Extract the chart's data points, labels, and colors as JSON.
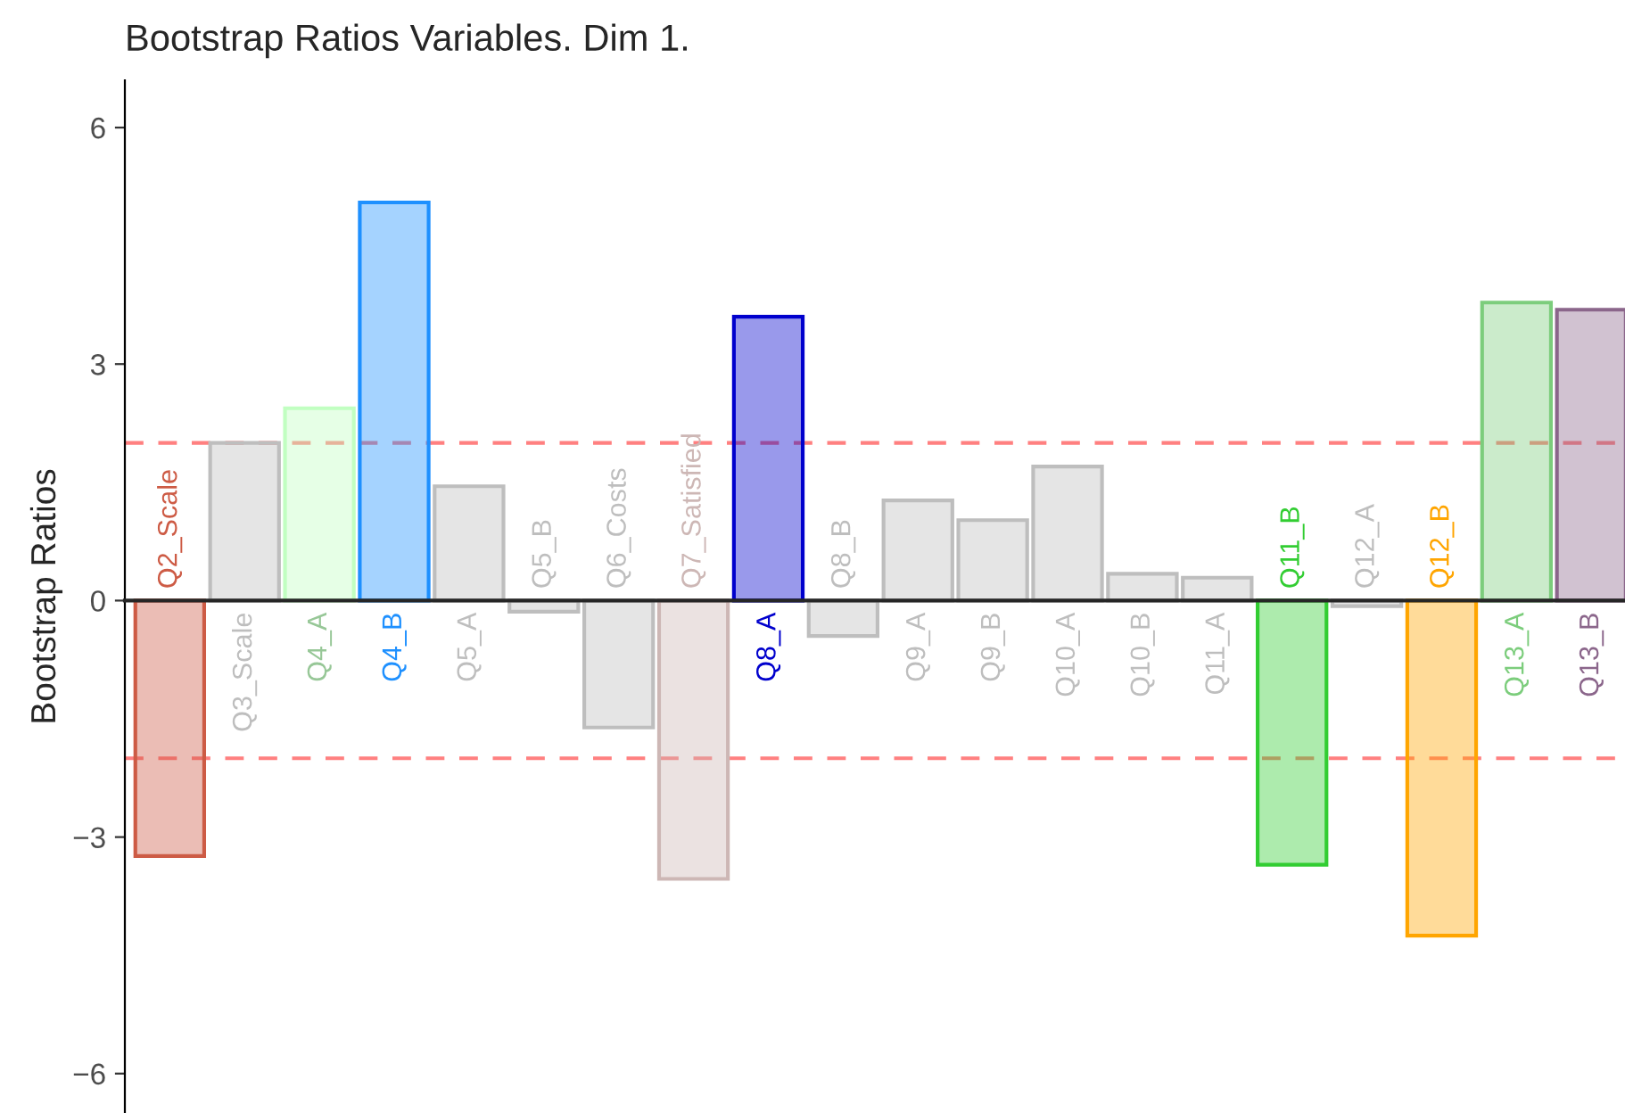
{
  "chart_data": {
    "type": "bar",
    "title": "Bootstrap Ratios Variables. Dim 1.",
    "ylabel": "Bootstrap Ratios",
    "categories": [
      "Q2_Scale",
      "Q3_Scale",
      "Q4_A",
      "Q4_B",
      "Q5_A",
      "Q5_B",
      "Q6_Costs",
      "Q7_Satisfied",
      "Q8_A",
      "Q8_B",
      "Q9_A",
      "Q9_B",
      "Q10_A",
      "Q10_B",
      "Q11_A",
      "Q11_B",
      "Q12_A",
      "Q12_B",
      "Q13_A",
      "Q13_B"
    ],
    "values": [
      -3.24,
      2.0,
      2.44,
      5.05,
      1.45,
      -0.14,
      -1.61,
      -3.53,
      3.6,
      -0.45,
      1.27,
      1.02,
      1.7,
      0.34,
      0.29,
      -3.35,
      -0.07,
      -4.25,
      3.78,
      3.69
    ],
    "colors": [
      "#cd5b45",
      "#bebebe",
      "#c1ffc1",
      "#1e90ff",
      "#bebebe",
      "#bebebe",
      "#bebebe",
      "#cdb7b5",
      "#0000cd",
      "#bebebe",
      "#bebebe",
      "#bebebe",
      "#bebebe",
      "#bebebe",
      "#bebebe",
      "#32cd32",
      "#bebebe",
      "#ffa500",
      "#7ccd7c",
      "#8b668b"
    ],
    "ylim": [
      -6.5,
      6.6
    ],
    "yticks": [
      {
        "value": -6,
        "label": "−6"
      },
      {
        "value": -3,
        "label": "−3"
      },
      0,
      3,
      6
    ],
    "ref_lines": [
      {
        "axis": "y",
        "value": 2,
        "color": "#ff8080",
        "line_style": "dashed"
      },
      {
        "axis": "y",
        "value": -2,
        "color": "#ff8080",
        "line_style": "dashed"
      }
    ],
    "grid": false,
    "legend": false
  }
}
